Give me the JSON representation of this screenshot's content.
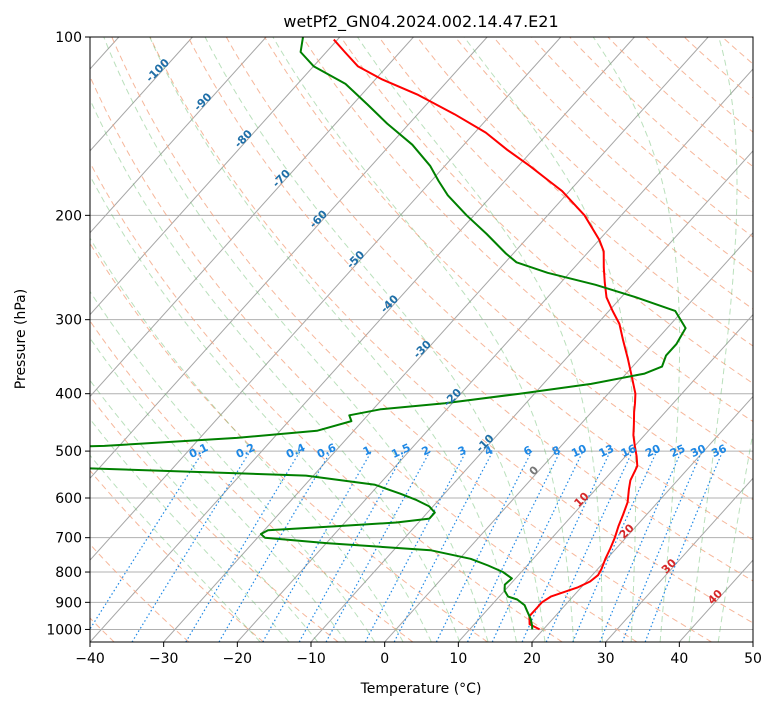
{
  "chart_data": {
    "type": "line",
    "title": "wetPf2_GN04.2024.002.14.47.E21",
    "xlabel": "Temperature (°C)",
    "ylabel": "Pressure (hPa)",
    "xlim": [
      -40,
      50
    ],
    "ylim": [
      1050,
      100
    ],
    "y_scale": "log",
    "x_ticks": [
      -40,
      -30,
      -20,
      -10,
      0,
      10,
      20,
      30,
      40,
      50
    ],
    "y_ticks": [
      100,
      200,
      300,
      400,
      500,
      600,
      700,
      800,
      900,
      1000
    ],
    "grid": true,
    "skew": true,
    "series": [
      {
        "role": "temperature",
        "color": "#ff0000",
        "points": [
          [
            19.5,
            1000
          ],
          [
            17.5,
            980
          ],
          [
            16.5,
            950
          ],
          [
            16.5,
            920
          ],
          [
            16.5,
            900
          ],
          [
            17.0,
            880
          ],
          [
            19.5,
            850
          ],
          [
            20.5,
            830
          ],
          [
            20.8,
            810
          ],
          [
            20.5,
            790
          ],
          [
            19.8,
            760
          ],
          [
            19.2,
            730
          ],
          [
            18.5,
            700
          ],
          [
            17.6,
            670
          ],
          [
            16.8,
            640
          ],
          [
            15.9,
            610
          ],
          [
            14.5,
            580
          ],
          [
            13.6,
            560
          ],
          [
            13.2,
            545
          ],
          [
            12.8,
            530
          ],
          [
            11.5,
            510
          ],
          [
            10.0,
            490
          ],
          [
            8.5,
            470
          ],
          [
            7.2,
            450
          ],
          [
            5.8,
            430
          ],
          [
            4.8,
            415
          ],
          [
            3.7,
            400
          ],
          [
            1.2,
            375
          ],
          [
            -1.5,
            350
          ],
          [
            -4.5,
            325
          ],
          [
            -7.0,
            305
          ],
          [
            -9.5,
            290
          ],
          [
            -12.0,
            275
          ],
          [
            -14.0,
            260
          ],
          [
            -16.0,
            245
          ],
          [
            -18.0,
            230
          ],
          [
            -20.0,
            220
          ],
          [
            -25.0,
            200
          ],
          [
            -31.0,
            182
          ],
          [
            -34.0,
            175
          ],
          [
            -38.5,
            165
          ],
          [
            -43.5,
            155
          ],
          [
            -48.5,
            145
          ],
          [
            -55.0,
            135
          ],
          [
            -62.5,
            125
          ],
          [
            -69.0,
            118
          ],
          [
            -74.0,
            112
          ],
          [
            -77.5,
            106
          ],
          [
            -80.5,
            101
          ]
        ]
      },
      {
        "role": "dewpoint",
        "color": "#008000",
        "points": [
          [
            18.5,
            1000
          ],
          [
            18.0,
            985
          ],
          [
            17.0,
            960
          ],
          [
            15.5,
            930
          ],
          [
            14.5,
            910
          ],
          [
            12.8,
            890
          ],
          [
            11.2,
            880
          ],
          [
            10.0,
            860
          ],
          [
            9.3,
            840
          ],
          [
            9.5,
            820
          ],
          [
            7.5,
            800
          ],
          [
            4.7,
            780
          ],
          [
            1.5,
            760
          ],
          [
            -5.0,
            735
          ],
          [
            -20.0,
            715
          ],
          [
            -29.0,
            700
          ],
          [
            -30.0,
            690
          ],
          [
            -29.5,
            680
          ],
          [
            -21.0,
            670
          ],
          [
            -13.0,
            660
          ],
          [
            -9.0,
            650
          ],
          [
            -9.0,
            635
          ],
          [
            -10.5,
            620
          ],
          [
            -13.0,
            605
          ],
          [
            -16.0,
            590
          ],
          [
            -20.5,
            570
          ],
          [
            -31.0,
            550
          ],
          [
            -75.0,
            528
          ],
          [
            -95.0,
            525
          ],
          [
            -94.0,
            500
          ],
          [
            -62.0,
            490
          ],
          [
            -45.0,
            475
          ],
          [
            -35.0,
            462
          ],
          [
            -31.5,
            445
          ],
          [
            -32.5,
            435
          ],
          [
            -29.0,
            425
          ],
          [
            -21.0,
            415
          ],
          [
            -12.0,
            400
          ],
          [
            -3.5,
            385
          ],
          [
            2.5,
            370
          ],
          [
            4.0,
            360
          ],
          [
            3.2,
            345
          ],
          [
            3.2,
            330
          ],
          [
            2.5,
            310
          ],
          [
            -1.0,
            290
          ],
          [
            -8.0,
            275
          ],
          [
            -15.0,
            262
          ],
          [
            -23.0,
            250
          ],
          [
            -28.5,
            240
          ],
          [
            -31.0,
            232
          ],
          [
            -36.0,
            215
          ],
          [
            -41.0,
            200
          ],
          [
            -46.0,
            185
          ],
          [
            -49.0,
            175
          ],
          [
            -52.0,
            165
          ],
          [
            -57.0,
            152
          ],
          [
            -63.0,
            140
          ],
          [
            -68.0,
            130
          ],
          [
            -73.5,
            120
          ],
          [
            -80.0,
            112
          ],
          [
            -83.5,
            106
          ],
          [
            -85.0,
            100
          ]
        ]
      }
    ],
    "dry_adiabat_labels": [
      "-100",
      "-90",
      "-80",
      "-70",
      "-60",
      "-50",
      "-40",
      "-30",
      "-20",
      "-10"
    ],
    "moist_adiabat_labels": [
      "0",
      "10",
      "20",
      "30",
      "40"
    ],
    "mixing_ratio_labels": [
      "0.1",
      "0.2",
      "0.4",
      "0.6",
      "1",
      "1.5",
      "2",
      "3",
      "4",
      "6",
      "8",
      "10",
      "13",
      "16",
      "20",
      "25",
      "30",
      "36"
    ]
  }
}
